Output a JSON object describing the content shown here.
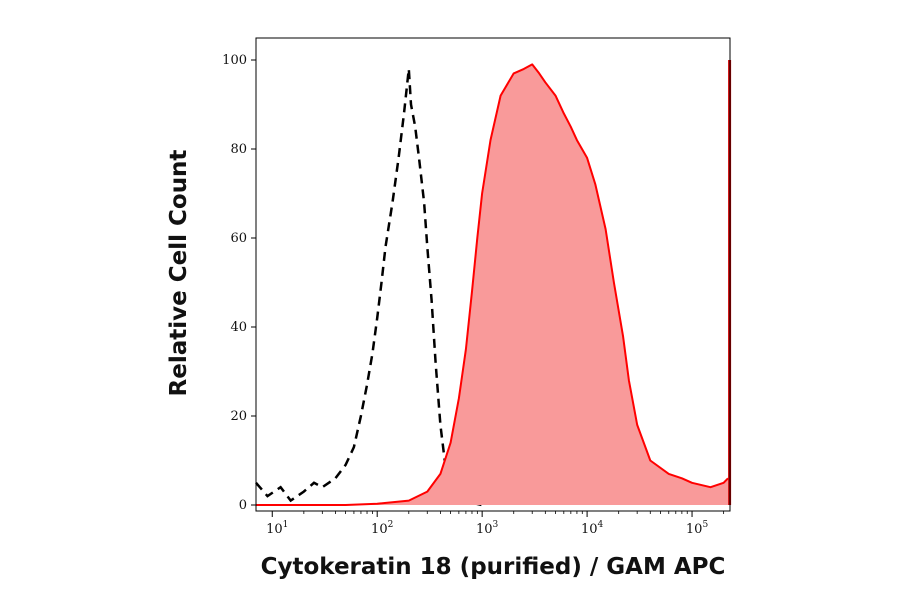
{
  "chart_data": {
    "type": "area",
    "title": "",
    "xlabel": "Cytokeratin 18 (purified) / GAM APC",
    "ylabel": "Relative Cell Count",
    "x_scale": "log",
    "xlim": [
      7,
      230000
    ],
    "ylim": [
      0,
      100
    ],
    "y_ticks": [
      0,
      20,
      40,
      60,
      80,
      100
    ],
    "x_ticks": [
      {
        "value": 10,
        "base": "10",
        "exp": "1"
      },
      {
        "value": 100,
        "base": "10",
        "exp": "2"
      },
      {
        "value": 1000,
        "base": "10",
        "exp": "3"
      },
      {
        "value": 10000,
        "base": "10",
        "exp": "4"
      },
      {
        "value": 100000,
        "base": "10",
        "exp": "5"
      }
    ],
    "grid": false,
    "legend": "none",
    "series": [
      {
        "style": "dashed-line",
        "color": "#000000",
        "x": [
          7,
          9,
          12,
          15,
          20,
          25,
          30,
          40,
          50,
          60,
          70,
          80,
          90,
          100,
          110,
          120,
          140,
          160,
          180,
          200,
          210,
          230,
          250,
          280,
          300,
          330,
          360,
          400,
          450,
          500,
          600,
          800,
          1000
        ],
        "y": [
          5,
          2,
          4,
          1,
          3,
          5,
          4,
          6,
          9,
          13,
          20,
          27,
          34,
          42,
          50,
          58,
          68,
          78,
          88,
          98,
          90,
          85,
          78,
          68,
          58,
          46,
          32,
          18,
          8,
          3,
          1,
          0.5,
          0
        ]
      },
      {
        "style": "filled",
        "color": "#ff0000",
        "fill": "#f99a9a",
        "x": [
          7,
          20,
          50,
          100,
          200,
          300,
          400,
          500,
          600,
          700,
          800,
          900,
          1000,
          1200,
          1500,
          2000,
          2500,
          3000,
          3500,
          4000,
          5000,
          6000,
          7000,
          8000,
          10000,
          12000,
          15000,
          18000,
          22000,
          25000,
          30000,
          40000,
          60000,
          80000,
          100000,
          150000,
          200000,
          220000
        ],
        "y": [
          0,
          0,
          0,
          0.3,
          1,
          3,
          7,
          14,
          24,
          35,
          48,
          60,
          70,
          82,
          92,
          97,
          98,
          99,
          97,
          95,
          92,
          88,
          85,
          82,
          78,
          72,
          62,
          50,
          38,
          28,
          18,
          10,
          7,
          6,
          5,
          4,
          5,
          6
        ]
      },
      {
        "style": "line",
        "color": "#cc0000",
        "x": [
          228000,
          228000
        ],
        "y": [
          0,
          100
        ]
      }
    ]
  }
}
